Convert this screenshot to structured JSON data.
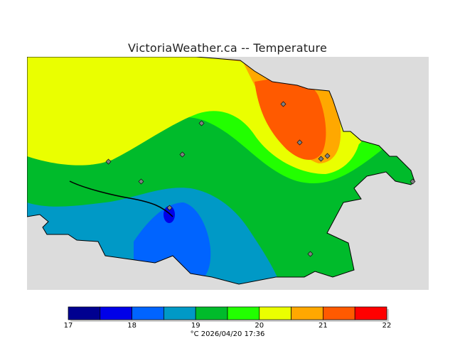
{
  "title": "VictoriaWeather.ca -- Temperature",
  "legend": {
    "bins": [
      {
        "from": 17.0,
        "to": 17.5,
        "color": "#000090"
      },
      {
        "from": 17.5,
        "to": 18.0,
        "color": "#0000e8"
      },
      {
        "from": 18.0,
        "to": 18.5,
        "color": "#0064ff"
      },
      {
        "from": 18.5,
        "to": 19.0,
        "color": "#0099c6"
      },
      {
        "from": 19.0,
        "to": 19.5,
        "color": "#00bb2b"
      },
      {
        "from": 19.5,
        "to": 20.0,
        "color": "#22ff00"
      },
      {
        "from": 20.0,
        "to": 20.5,
        "color": "#eaff00"
      },
      {
        "from": 20.5,
        "to": 21.0,
        "color": "#ffa800"
      },
      {
        "from": 21.0,
        "to": 21.5,
        "color": "#ff5a00"
      },
      {
        "from": 21.5,
        "to": 22.0,
        "color": "#ff0000"
      }
    ],
    "tick_labels": [
      "17",
      "18",
      "19",
      "20",
      "21",
      "22"
    ]
  },
  "caption": "°C  2026/04/20 17:36",
  "colors": {
    "background_ocean": "#dcdcdc",
    "station_marker": "#808080"
  }
}
